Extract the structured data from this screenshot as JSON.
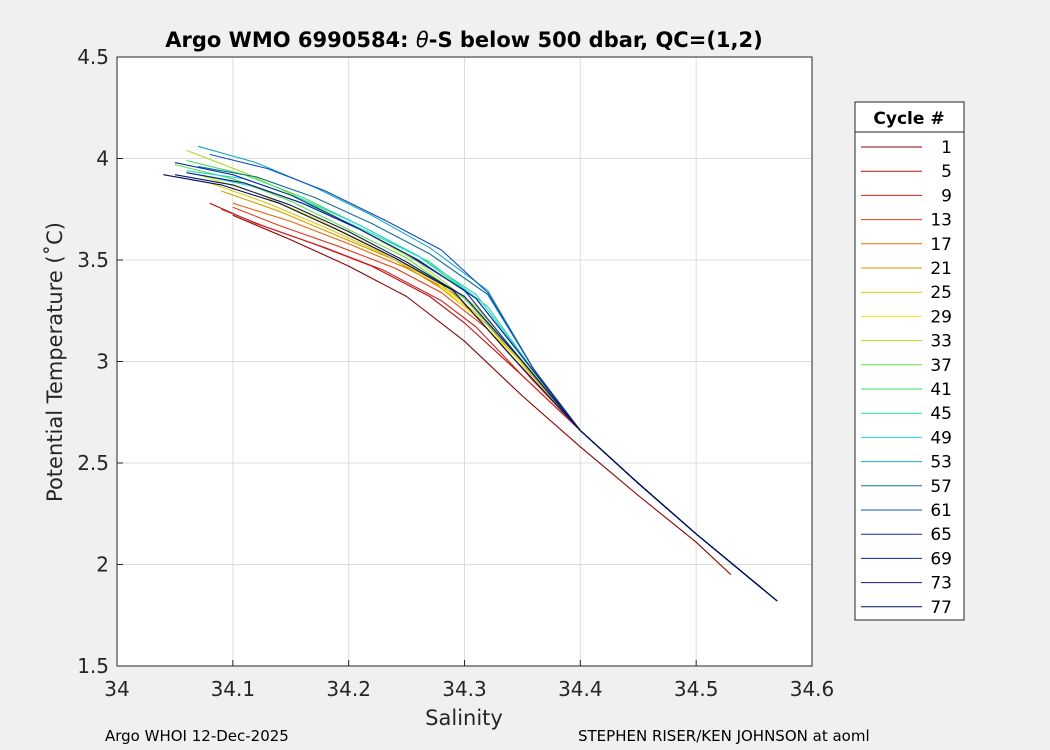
{
  "chart_data": {
    "type": "line",
    "title": "Argo WMO 6990584: θ-S below 500 dbar,  QC=(1,2)",
    "title_prefix": "Argo WMO 6990584: ",
    "title_symbol": "θ",
    "title_suffix": "-S below 500 dbar,  QC=(1,2)",
    "xlabel": "Salinity",
    "ylabel": "Potential Temperature (˚C)",
    "xlim": [
      34.0,
      34.6
    ],
    "ylim": [
      1.5,
      4.5
    ],
    "xticks": [
      34,
      34.1,
      34.2,
      34.3,
      34.4,
      34.5,
      34.6
    ],
    "xtick_labels": [
      "34",
      "34.1",
      "34.2",
      "34.3",
      "34.4",
      "34.5",
      "34.6"
    ],
    "yticks": [
      1.5,
      2,
      2.5,
      3,
      3.5,
      4,
      4.5
    ],
    "ytick_labels": [
      "1.5",
      "2",
      "2.5",
      "3",
      "3.5",
      "4",
      "4.5"
    ],
    "grid": true,
    "legend": {
      "title": "Cycle #",
      "location": "outside-right",
      "entries": [
        {
          "label": "1",
          "color": "#8b0000"
        },
        {
          "label": "5",
          "color": "#b01010"
        },
        {
          "label": "9",
          "color": "#d42020"
        },
        {
          "label": "13",
          "color": "#e03a1a"
        },
        {
          "label": "17",
          "color": "#e86a10"
        },
        {
          "label": "21",
          "color": "#d49a00"
        },
        {
          "label": "25",
          "color": "#d8cc00"
        },
        {
          "label": "29",
          "color": "#f2ee00"
        },
        {
          "label": "33",
          "color": "#a8e020"
        },
        {
          "label": "37",
          "color": "#66dd44"
        },
        {
          "label": "41",
          "color": "#3ade66"
        },
        {
          "label": "45",
          "color": "#22dda8"
        },
        {
          "label": "49",
          "color": "#22d8d8"
        },
        {
          "label": "53",
          "color": "#1aa8c8"
        },
        {
          "label": "57",
          "color": "#127090"
        },
        {
          "label": "61",
          "color": "#1050c0"
        },
        {
          "label": "65",
          "color": "#1030a8"
        },
        {
          "label": "69",
          "color": "#102090"
        },
        {
          "label": "73",
          "color": "#0a1478"
        },
        {
          "label": "77",
          "color": "#050a5a"
        }
      ]
    },
    "series": [
      {
        "name": "1",
        "color": "#8b0000",
        "x": [
          34.1,
          34.15,
          34.2,
          34.25,
          34.3,
          34.35,
          34.4,
          34.45,
          34.5,
          34.53
        ],
        "y": [
          3.72,
          3.6,
          3.47,
          3.32,
          3.1,
          2.83,
          2.58,
          2.34,
          2.11,
          1.95
        ]
      },
      {
        "name": "5",
        "color": "#b01010",
        "x": [
          34.08,
          34.12,
          34.17,
          34.22,
          34.27,
          34.3,
          34.35,
          34.4,
          34.45,
          34.5,
          34.57
        ],
        "y": [
          3.78,
          3.68,
          3.58,
          3.47,
          3.32,
          3.19,
          2.93,
          2.66,
          2.4,
          2.15,
          1.82
        ]
      },
      {
        "name": "9",
        "color": "#d42020",
        "x": [
          34.09,
          34.13,
          34.18,
          34.23,
          34.28,
          34.31,
          34.35,
          34.4,
          34.45,
          34.5,
          34.57
        ],
        "y": [
          3.75,
          3.66,
          3.56,
          3.45,
          3.3,
          3.17,
          2.93,
          2.66,
          2.4,
          2.15,
          1.82
        ]
      },
      {
        "name": "13",
        "color": "#e03a1a",
        "x": [
          34.1,
          34.14,
          34.19,
          34.24,
          34.28,
          34.32,
          34.36,
          34.4,
          34.45,
          34.5,
          34.57
        ],
        "y": [
          3.76,
          3.67,
          3.57,
          3.46,
          3.34,
          3.16,
          2.9,
          2.66,
          2.4,
          2.15,
          1.82
        ]
      },
      {
        "name": "17",
        "color": "#e86a10",
        "x": [
          34.1,
          34.15,
          34.2,
          34.25,
          34.29,
          34.32,
          34.36,
          34.4,
          34.45,
          34.5,
          34.57
        ],
        "y": [
          3.78,
          3.69,
          3.58,
          3.46,
          3.34,
          3.16,
          2.9,
          2.66,
          2.4,
          2.15,
          1.82
        ]
      },
      {
        "name": "21",
        "color": "#d49a00",
        "x": [
          34.09,
          34.14,
          34.19,
          34.24,
          34.28,
          34.32,
          34.36,
          34.4,
          34.45,
          34.5,
          34.57
        ],
        "y": [
          3.84,
          3.74,
          3.62,
          3.5,
          3.36,
          3.18,
          2.92,
          2.66,
          2.4,
          2.15,
          1.82
        ]
      },
      {
        "name": "25",
        "color": "#d8cc00",
        "x": [
          34.08,
          34.13,
          34.18,
          34.23,
          34.28,
          34.32,
          34.36,
          34.4,
          34.45,
          34.5,
          34.57
        ],
        "y": [
          3.88,
          3.78,
          3.66,
          3.53,
          3.38,
          3.19,
          2.93,
          2.66,
          2.4,
          2.15,
          1.82
        ]
      },
      {
        "name": "29",
        "color": "#f2ee00",
        "x": [
          34.07,
          34.12,
          34.17,
          34.22,
          34.27,
          34.31,
          34.36,
          34.4,
          34.45,
          34.5,
          34.57
        ],
        "y": [
          3.92,
          3.83,
          3.71,
          3.57,
          3.42,
          3.22,
          2.93,
          2.66,
          2.4,
          2.15,
          1.82
        ]
      },
      {
        "name": "33",
        "color": "#a8e020",
        "x": [
          34.06,
          34.11,
          34.16,
          34.21,
          34.26,
          34.31,
          34.36,
          34.4,
          34.45,
          34.5,
          34.57
        ],
        "y": [
          4.04,
          3.93,
          3.8,
          3.65,
          3.49,
          3.27,
          2.94,
          2.66,
          2.4,
          2.15,
          1.82
        ]
      },
      {
        "name": "37",
        "color": "#66dd44",
        "x": [
          34.05,
          34.1,
          34.15,
          34.2,
          34.25,
          34.3,
          34.35,
          34.4,
          34.45,
          34.5,
          34.57
        ],
        "y": [
          3.97,
          3.9,
          3.79,
          3.65,
          3.51,
          3.31,
          3.0,
          2.66,
          2.4,
          2.15,
          1.82
        ]
      },
      {
        "name": "41",
        "color": "#3ade66",
        "x": [
          34.06,
          34.11,
          34.16,
          34.21,
          34.26,
          34.31,
          34.36,
          34.4,
          34.45,
          34.5,
          34.57
        ],
        "y": [
          3.99,
          3.92,
          3.81,
          3.67,
          3.52,
          3.31,
          2.95,
          2.66,
          2.4,
          2.15,
          1.82
        ]
      },
      {
        "name": "45",
        "color": "#22dda8",
        "x": [
          34.07,
          34.12,
          34.17,
          34.22,
          34.27,
          34.32,
          34.36,
          34.4,
          34.45,
          34.5,
          34.57
        ],
        "y": [
          3.92,
          3.86,
          3.76,
          3.63,
          3.49,
          3.27,
          2.95,
          2.66,
          2.4,
          2.15,
          1.82
        ]
      },
      {
        "name": "49",
        "color": "#22d8d8",
        "x": [
          34.06,
          34.11,
          34.16,
          34.21,
          34.26,
          34.31,
          34.36,
          34.4,
          34.45,
          34.5,
          34.57
        ],
        "y": [
          3.94,
          3.9,
          3.8,
          3.67,
          3.52,
          3.33,
          2.95,
          2.66,
          2.4,
          2.15,
          1.82
        ]
      },
      {
        "name": "53",
        "color": "#1aa8c8",
        "x": [
          34.07,
          34.12,
          34.17,
          34.22,
          34.27,
          34.32,
          34.36,
          34.4,
          34.45,
          34.5,
          34.57
        ],
        "y": [
          4.06,
          3.98,
          3.86,
          3.72,
          3.56,
          3.35,
          2.96,
          2.66,
          2.4,
          2.15,
          1.82
        ]
      },
      {
        "name": "57",
        "color": "#127090",
        "x": [
          34.07,
          34.12,
          34.17,
          34.22,
          34.27,
          34.32,
          34.36,
          34.4,
          34.45,
          34.5,
          34.57
        ],
        "y": [
          3.96,
          3.91,
          3.81,
          3.68,
          3.53,
          3.33,
          2.96,
          2.66,
          2.4,
          2.15,
          1.82
        ]
      },
      {
        "name": "61",
        "color": "#1050c0",
        "x": [
          34.08,
          34.13,
          34.18,
          34.23,
          34.28,
          34.32,
          34.36,
          34.4,
          34.45,
          34.5,
          34.57
        ],
        "y": [
          4.02,
          3.95,
          3.84,
          3.7,
          3.55,
          3.34,
          2.96,
          2.66,
          2.4,
          2.15,
          1.82
        ]
      },
      {
        "name": "65",
        "color": "#1030a8",
        "x": [
          34.05,
          34.1,
          34.15,
          34.2,
          34.25,
          34.3,
          34.35,
          34.4,
          34.45,
          34.5,
          34.57
        ],
        "y": [
          3.98,
          3.92,
          3.82,
          3.68,
          3.53,
          3.35,
          3.0,
          2.66,
          2.4,
          2.15,
          1.82
        ]
      },
      {
        "name": "69",
        "color": "#102090",
        "x": [
          34.06,
          34.11,
          34.16,
          34.21,
          34.26,
          34.31,
          34.36,
          34.4,
          34.45,
          34.5,
          34.57
        ],
        "y": [
          3.93,
          3.88,
          3.78,
          3.65,
          3.5,
          3.31,
          2.95,
          2.66,
          2.4,
          2.15,
          1.82
        ]
      },
      {
        "name": "73",
        "color": "#0a1478",
        "x": [
          34.05,
          34.1,
          34.15,
          34.2,
          34.25,
          34.3,
          34.35,
          34.4,
          34.45,
          34.5,
          34.57
        ],
        "y": [
          3.92,
          3.87,
          3.77,
          3.64,
          3.49,
          3.32,
          3.0,
          2.66,
          2.4,
          2.15,
          1.82
        ]
      },
      {
        "name": "77",
        "color": "#050a5a",
        "x": [
          34.04,
          34.09,
          34.14,
          34.19,
          34.24,
          34.29,
          34.34,
          34.4,
          34.45,
          34.5,
          34.57
        ],
        "y": [
          3.92,
          3.87,
          3.78,
          3.65,
          3.51,
          3.35,
          3.03,
          2.66,
          2.4,
          2.15,
          1.82
        ]
      }
    ]
  },
  "footer": {
    "left": "Argo WHOI 12-Dec-2025",
    "right": "STEPHEN RISER/KEN JOHNSON at aoml"
  }
}
